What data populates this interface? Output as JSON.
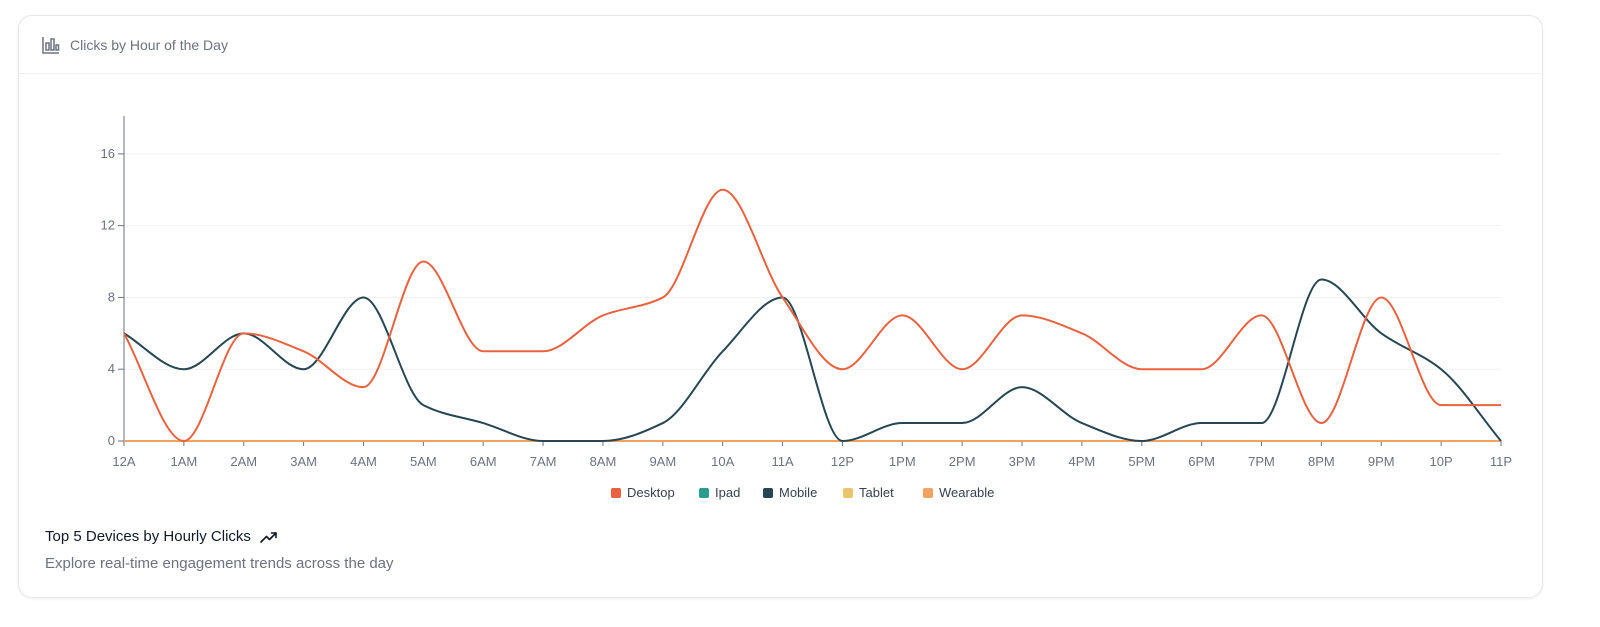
{
  "header": {
    "title": "Clicks by Hour of the Day",
    "icon": "bar-chart-icon"
  },
  "footer": {
    "title": "Top 5 Devices by Hourly Clicks",
    "trend_icon": "trending-up-icon",
    "subtitle": "Explore real-time engagement trends across the day"
  },
  "chart_data": {
    "type": "line",
    "title": "Clicks by Hour of the Day",
    "xlabel": "",
    "ylabel": "",
    "ylim": [
      0,
      18
    ],
    "yticks": [
      0,
      4,
      8,
      12,
      16
    ],
    "grid": true,
    "legend_position": "bottom-center",
    "categories": [
      "12A",
      "1AM",
      "2AM",
      "3AM",
      "4AM",
      "5AM",
      "6AM",
      "7AM",
      "8AM",
      "9AM",
      "10A",
      "11A",
      "12P",
      "1PM",
      "2PM",
      "3PM",
      "4PM",
      "5PM",
      "6PM",
      "7PM",
      "8PM",
      "9PM",
      "10P",
      "11P"
    ],
    "series": [
      {
        "name": "Desktop",
        "color": "#e9623f",
        "values": [
          6,
          0,
          6,
          5,
          3,
          10,
          5,
          5,
          7,
          8,
          14,
          8,
          4,
          7,
          4,
          7,
          6,
          4,
          4,
          7,
          1,
          8,
          2,
          2
        ]
      },
      {
        "name": "Ipad",
        "color": "#2a9d8f",
        "values": [
          0,
          0,
          0,
          0,
          0,
          0,
          0,
          0,
          0,
          0,
          0,
          0,
          0,
          0,
          0,
          0,
          0,
          0,
          0,
          0,
          0,
          0,
          0,
          0
        ]
      },
      {
        "name": "Mobile",
        "color": "#264653",
        "values": [
          6,
          4,
          6,
          4,
          8,
          2,
          1,
          0,
          0,
          1,
          5,
          8,
          0,
          1,
          1,
          3,
          1,
          0,
          1,
          1,
          9,
          6,
          4,
          0
        ]
      },
      {
        "name": "Tablet",
        "color": "#e9c46a",
        "values": [
          0,
          0,
          0,
          0,
          0,
          0,
          0,
          0,
          0,
          0,
          0,
          0,
          0,
          0,
          0,
          0,
          0,
          0,
          0,
          0,
          0,
          0,
          0,
          0
        ]
      },
      {
        "name": "Wearable",
        "color": "#f4a261",
        "values": [
          0,
          0,
          0,
          0,
          0,
          0,
          0,
          0,
          0,
          0,
          0,
          0,
          0,
          0,
          0,
          0,
          0,
          0,
          0,
          0,
          0,
          0,
          0,
          0
        ]
      }
    ]
  }
}
